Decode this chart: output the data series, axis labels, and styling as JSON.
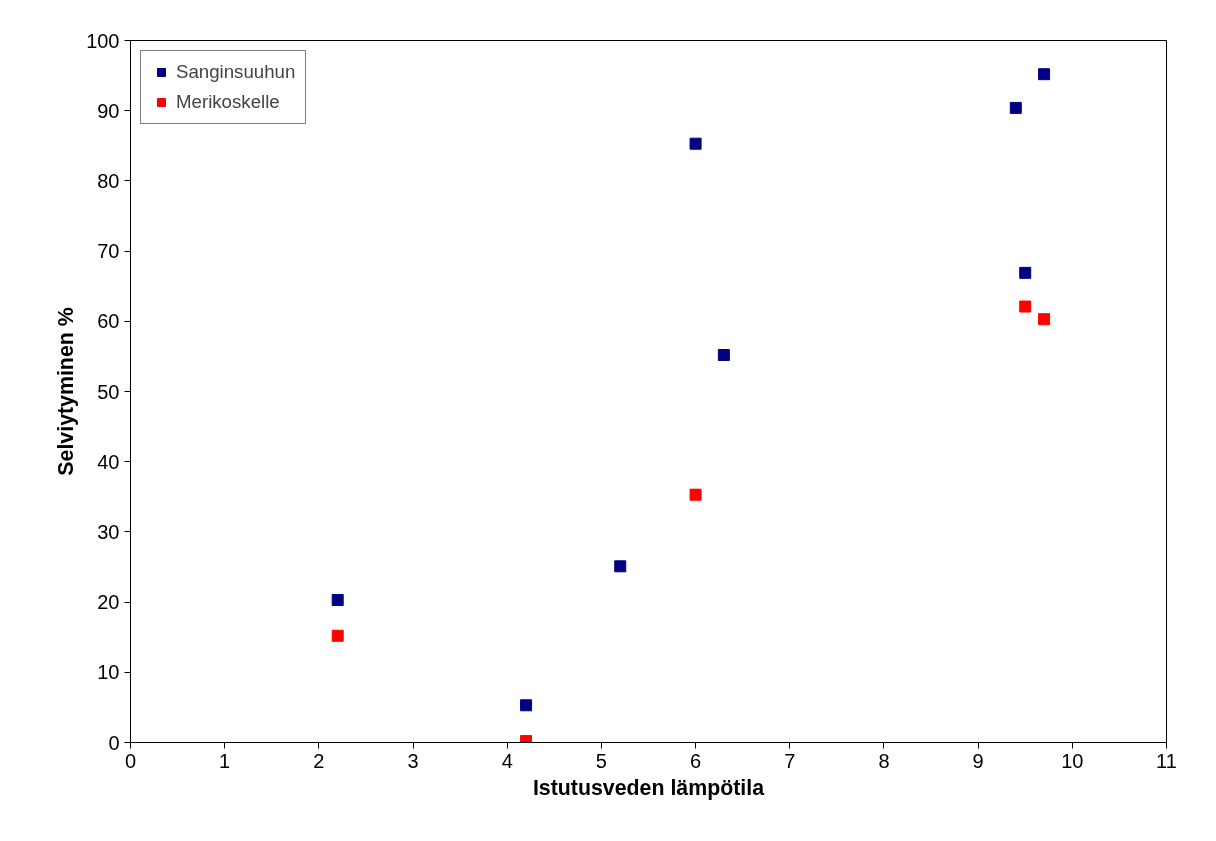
{
  "chart_data": {
    "type": "scatter",
    "xlabel": "Istutusveden lämpötila",
    "ylabel": "Selviytyminen %",
    "xlim": [
      0,
      11
    ],
    "xticks": [
      0,
      1,
      2,
      3,
      4,
      5,
      6,
      7,
      8,
      9,
      10,
      11
    ],
    "ylim": [
      0,
      100
    ],
    "yticks": [
      0,
      10,
      20,
      30,
      40,
      50,
      60,
      70,
      80,
      90,
      100
    ],
    "grid": false,
    "legend": "top left",
    "marker": "square",
    "series": [
      {
        "name": "Sanginsuuhun",
        "color": "#000080",
        "x": [
          2.2,
          4.2,
          5.2,
          6.0,
          6.3,
          9.4,
          9.5,
          9.7
        ],
        "values": [
          20.3,
          5.3,
          25.1,
          85.3,
          55.2,
          90.4,
          66.9,
          95.2
        ]
      },
      {
        "name": "Merikoskelle",
        "color": "#ff0000",
        "x": [
          2.2,
          4.2,
          6.0,
          9.5,
          9.7
        ],
        "values": [
          15.2,
          0.2,
          35.3,
          62.1,
          60.3
        ]
      }
    ]
  }
}
